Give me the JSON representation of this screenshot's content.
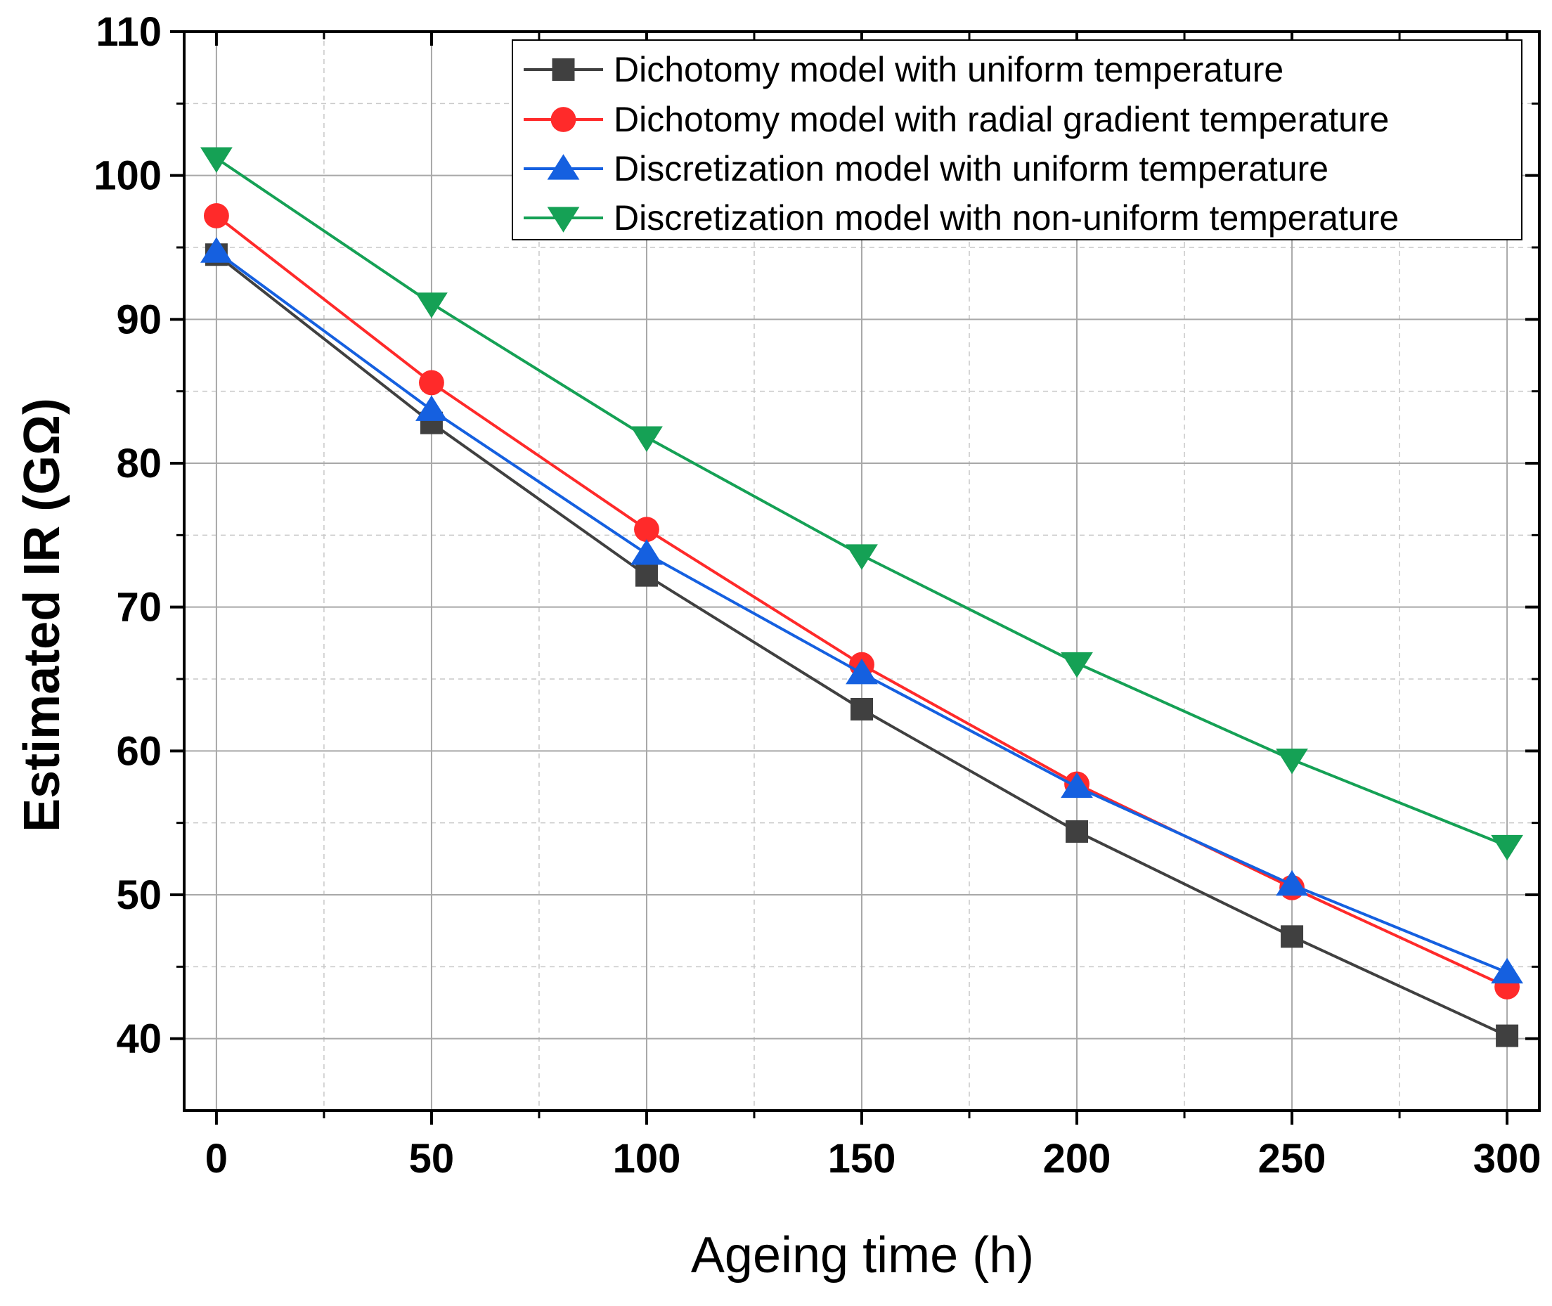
{
  "chart_data": {
    "type": "line",
    "title": "",
    "xlabel": "Ageing time (h)",
    "ylabel": "Estimated IR (GΩ)",
    "x": [
      0,
      50,
      100,
      150,
      200,
      250,
      300
    ],
    "xlim": [
      -7.5,
      307.5
    ],
    "ylim": [
      35,
      110
    ],
    "xticks": [
      0,
      50,
      100,
      150,
      200,
      250,
      300
    ],
    "xtick_labels": [
      "0",
      "50",
      "100",
      "150",
      "200",
      "250",
      "300"
    ],
    "yticks": [
      40,
      50,
      60,
      70,
      80,
      90,
      100,
      110
    ],
    "ytick_labels": [
      "40",
      "50",
      "60",
      "70",
      "80",
      "90",
      "100",
      "110"
    ],
    "grid": true,
    "legend_position": "top-right",
    "series": [
      {
        "name": "Dichotomy model with uniform temperature",
        "marker": "square",
        "color": "#404040",
        "values": [
          94.5,
          82.8,
          72.2,
          62.9,
          54.4,
          47.1,
          40.2
        ]
      },
      {
        "name": "Dichotomy model with radial gradient temperature",
        "marker": "circle",
        "color": "#ff2a2a",
        "values": [
          97.2,
          85.6,
          75.4,
          66.0,
          57.7,
          50.5,
          43.6
        ]
      },
      {
        "name": "Discretization model with uniform temperature",
        "marker": "triangle-up",
        "color": "#1560e0",
        "values": [
          94.7,
          83.7,
          73.7,
          65.4,
          57.5,
          50.7,
          44.6
        ]
      },
      {
        "name": "Discretization model with non-uniform temperature",
        "marker": "triangle-down",
        "color": "#15a155",
        "values": [
          101.2,
          91.1,
          81.8,
          73.6,
          66.1,
          59.4,
          53.4
        ]
      }
    ]
  }
}
